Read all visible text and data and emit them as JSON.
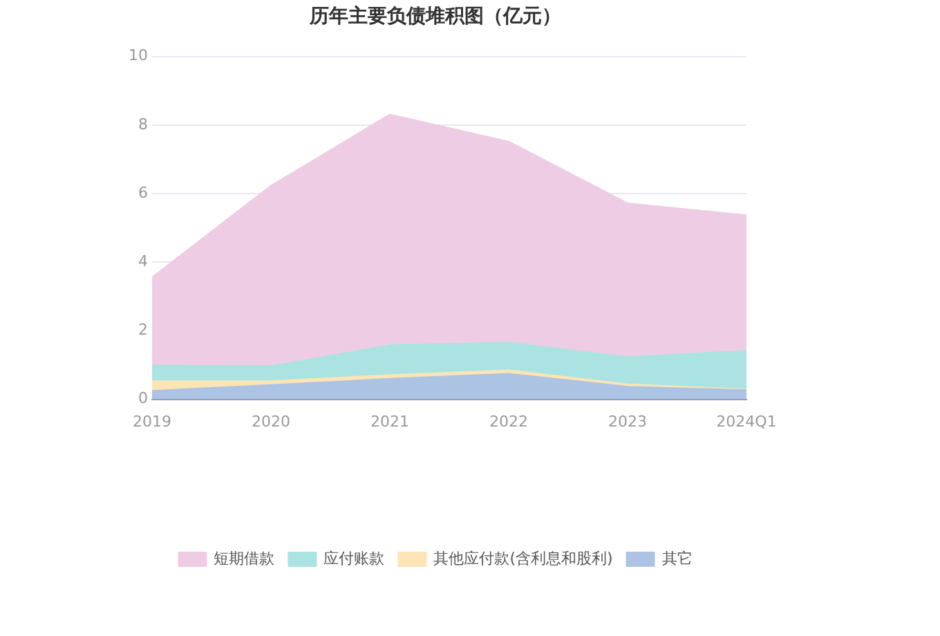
{
  "chart_data": {
    "type": "area",
    "title": "历年主要负债堆积图（亿元）",
    "categories": [
      "2019",
      "2020",
      "2021",
      "2022",
      "2023",
      "2024Q1"
    ],
    "stacked": true,
    "ylim": [
      0,
      10
    ],
    "yticks": [
      0,
      2,
      4,
      6,
      8,
      10
    ],
    "grid": "y",
    "legend": "bottom",
    "series": [
      {
        "name": "其它",
        "color": "#adc3e4",
        "values": [
          0.25,
          0.42,
          0.6,
          0.75,
          0.37,
          0.27
        ]
      },
      {
        "name": "其他应付款(含利息和股利)",
        "color": "#fde4b4",
        "values": [
          0.28,
          0.11,
          0.11,
          0.1,
          0.07,
          0.02
        ]
      },
      {
        "name": "应付账款",
        "color": "#abe3e2",
        "values": [
          0.46,
          0.44,
          0.87,
          0.81,
          0.79,
          1.13
        ]
      },
      {
        "name": "短期借款",
        "color": "#eecde4",
        "values": [
          2.57,
          5.26,
          6.73,
          5.86,
          4.49,
          3.95
        ]
      }
    ]
  }
}
